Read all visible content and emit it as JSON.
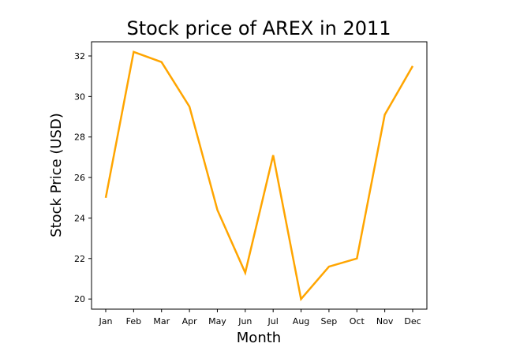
{
  "chart_data": {
    "type": "line",
    "title": "Stock price of AREX in 2011",
    "xlabel": "Month",
    "ylabel": "Stock Price (USD)",
    "categories": [
      "Jan",
      "Feb",
      "Mar",
      "Apr",
      "May",
      "Jun",
      "Jul",
      "Aug",
      "Sep",
      "Oct",
      "Nov",
      "Dec"
    ],
    "series": [
      {
        "values": [
          25.0,
          32.2,
          31.7,
          29.5,
          24.4,
          21.3,
          27.1,
          20.0,
          21.6,
          22.0,
          29.1,
          31.5
        ],
        "color": "#ffa500"
      }
    ],
    "ylim": [
      19.5,
      32.7
    ],
    "yticks": [
      20,
      22,
      24,
      26,
      28,
      30,
      32
    ],
    "grid": false,
    "legend": "none"
  }
}
